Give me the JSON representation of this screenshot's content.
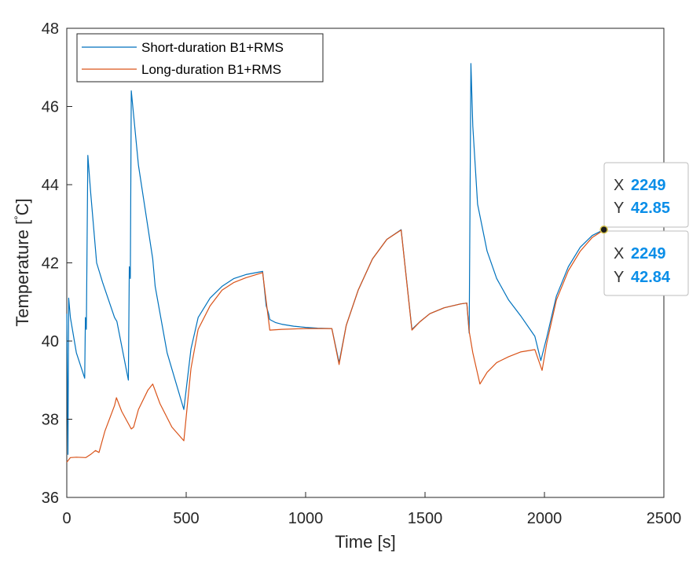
{
  "chart_data": {
    "type": "line",
    "xlabel": "Time [s]",
    "ylabel_text": "Temperature [",
    "ylabel_unit": "C]",
    "xlim": [
      0,
      2500
    ],
    "ylim": [
      36,
      48
    ],
    "xticks": [
      0,
      500,
      1000,
      1500,
      2000,
      2500
    ],
    "yticks": [
      36,
      38,
      40,
      42,
      44,
      46,
      48
    ],
    "grid": false,
    "legend_position": "top-left",
    "series": [
      {
        "name": "Short-duration B1+RMS",
        "color": "#0072bd",
        "points": [
          [
            0,
            40.7
          ],
          [
            5,
            37.1
          ],
          [
            8,
            41.1
          ],
          [
            15,
            40.6
          ],
          [
            40,
            39.7
          ],
          [
            75,
            39.05
          ],
          [
            78,
            40.6
          ],
          [
            82,
            40.3
          ],
          [
            88,
            44.75
          ],
          [
            100,
            43.8
          ],
          [
            125,
            42
          ],
          [
            150,
            41.5
          ],
          [
            200,
            40.6
          ],
          [
            210,
            40.5
          ],
          [
            258,
            39.0
          ],
          [
            262,
            41.9
          ],
          [
            266,
            41.6
          ],
          [
            270,
            46.4
          ],
          [
            300,
            44.5
          ],
          [
            360,
            42.1
          ],
          [
            370,
            41.4
          ],
          [
            420,
            39.7
          ],
          [
            490,
            38.25
          ],
          [
            520,
            39.8
          ],
          [
            550,
            40.6
          ],
          [
            600,
            41.1
          ],
          [
            650,
            41.4
          ],
          [
            700,
            41.6
          ],
          [
            750,
            41.7
          ],
          [
            820,
            41.78
          ],
          [
            835,
            40.9
          ],
          [
            845,
            40.7
          ],
          [
            850,
            40.55
          ],
          [
            875,
            40.47
          ],
          [
            900,
            40.43
          ],
          [
            950,
            40.38
          ],
          [
            1000,
            40.35
          ],
          [
            1050,
            40.33
          ],
          [
            1110,
            40.32
          ],
          [
            1140,
            39.45
          ],
          [
            1170,
            40.4
          ],
          [
            1220,
            41.3
          ],
          [
            1280,
            42.1
          ],
          [
            1340,
            42.6
          ],
          [
            1400,
            42.85
          ],
          [
            1445,
            40.3
          ],
          [
            1480,
            40.5
          ],
          [
            1520,
            40.7
          ],
          [
            1580,
            40.85
          ],
          [
            1650,
            40.95
          ],
          [
            1675,
            40.97
          ],
          [
            1685,
            40.2
          ],
          [
            1692,
            47.1
          ],
          [
            1700,
            45.5
          ],
          [
            1720,
            43.5
          ],
          [
            1760,
            42.3
          ],
          [
            1800,
            41.6
          ],
          [
            1850,
            41.05
          ],
          [
            1900,
            40.65
          ],
          [
            1960,
            40.12
          ],
          [
            1985,
            39.5
          ],
          [
            2010,
            40.1
          ],
          [
            2050,
            41.15
          ],
          [
            2100,
            41.9
          ],
          [
            2150,
            42.4
          ],
          [
            2200,
            42.7
          ],
          [
            2249,
            42.85
          ]
        ]
      },
      {
        "name": "Long-duration B1+RMS",
        "color": "#d95319",
        "points": [
          [
            0,
            36.9
          ],
          [
            15,
            37.02
          ],
          [
            40,
            37.03
          ],
          [
            80,
            37.02
          ],
          [
            100,
            37.1
          ],
          [
            120,
            37.2
          ],
          [
            135,
            37.15
          ],
          [
            160,
            37.7
          ],
          [
            200,
            38.35
          ],
          [
            208,
            38.55
          ],
          [
            230,
            38.2
          ],
          [
            270,
            37.75
          ],
          [
            280,
            37.8
          ],
          [
            300,
            38.25
          ],
          [
            340,
            38.75
          ],
          [
            360,
            38.9
          ],
          [
            390,
            38.4
          ],
          [
            440,
            37.8
          ],
          [
            490,
            37.45
          ],
          [
            520,
            39.3
          ],
          [
            550,
            40.3
          ],
          [
            600,
            40.9
          ],
          [
            650,
            41.3
          ],
          [
            700,
            41.5
          ],
          [
            750,
            41.62
          ],
          [
            820,
            41.75
          ],
          [
            850,
            40.28
          ],
          [
            900,
            40.3
          ],
          [
            1000,
            40.32
          ],
          [
            1110,
            40.32
          ],
          [
            1140,
            39.4
          ],
          [
            1170,
            40.4
          ],
          [
            1220,
            41.3
          ],
          [
            1280,
            42.1
          ],
          [
            1340,
            42.6
          ],
          [
            1400,
            42.84
          ],
          [
            1445,
            40.28
          ],
          [
            1480,
            40.5
          ],
          [
            1520,
            40.7
          ],
          [
            1580,
            40.85
          ],
          [
            1650,
            40.95
          ],
          [
            1675,
            40.97
          ],
          [
            1685,
            40.25
          ],
          [
            1700,
            39.7
          ],
          [
            1730,
            38.9
          ],
          [
            1760,
            39.2
          ],
          [
            1800,
            39.45
          ],
          [
            1850,
            39.6
          ],
          [
            1900,
            39.72
          ],
          [
            1960,
            39.78
          ],
          [
            1990,
            39.25
          ],
          [
            2010,
            39.95
          ],
          [
            2050,
            41.05
          ],
          [
            2100,
            41.8
          ],
          [
            2150,
            42.3
          ],
          [
            2200,
            42.65
          ],
          [
            2249,
            42.84
          ]
        ]
      }
    ],
    "datatips": [
      {
        "x_label": "X",
        "y_label": "Y",
        "x_value": "2249",
        "y_value": "42.85"
      },
      {
        "x_label": "X",
        "y_label": "Y",
        "x_value": "2249",
        "y_value": "42.84"
      }
    ]
  }
}
